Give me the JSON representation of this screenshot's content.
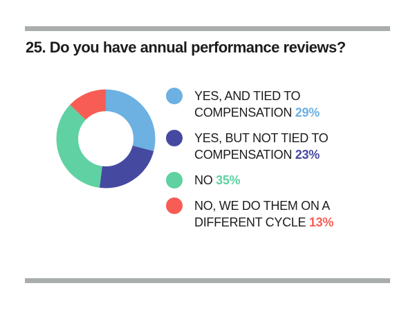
{
  "title": "25. Do you have annual performance reviews?",
  "colors": {
    "background": "#ffffff",
    "rule_gray": "#a9adac",
    "text": "#1c1c1c"
  },
  "chart_data": {
    "type": "pie",
    "subtype": "donut",
    "title": "25. Do you have annual performance reviews?",
    "start_angle_deg": 0,
    "direction": "clockwise",
    "inner_radius_ratio": 0.56,
    "legend_position": "right",
    "series": [
      {
        "label": "YES, AND TIED TO COMPENSATION",
        "value": 29,
        "color": "#6cb1e1"
      },
      {
        "label": "YES, BUT NOT TIED TO COMPENSATION",
        "value": 23,
        "color": "#4649a0"
      },
      {
        "label": "NO",
        "value": 35,
        "color": "#5fd1a2"
      },
      {
        "label": "NO, WE DO THEM ON A DIFFERENT CYCLE",
        "value": 13,
        "color": "#f85d55"
      }
    ]
  },
  "legend": {
    "items": [
      {
        "label": "YES, AND TIED TO COMPENSATION",
        "value_text": "29%",
        "color": "#6cb1e1"
      },
      {
        "label": "YES, BUT NOT TIED TO COMPENSATION",
        "value_text": "23%",
        "color": "#4649a0"
      },
      {
        "label": "NO",
        "value_text": "35%",
        "color": "#5fd1a2"
      },
      {
        "label": "NO, WE DO THEM ON A DIFFERENT CYCLE",
        "value_text": "13%",
        "color": "#f85d55"
      }
    ]
  }
}
